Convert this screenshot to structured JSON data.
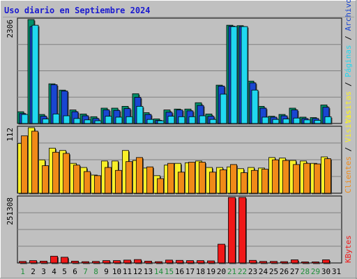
{
  "chart_data": {
    "type": "bar",
    "title": "Uso diario en Septiembre 2024",
    "days": [
      "1",
      "2",
      "3",
      "4",
      "5",
      "6",
      "7",
      "8",
      "9",
      "10",
      "11",
      "12",
      "13",
      "14",
      "15",
      "16",
      "17",
      "18",
      "19",
      "20",
      "21",
      "22",
      "23",
      "24",
      "25",
      "26",
      "27",
      "28",
      "29",
      "30",
      "31"
    ],
    "weekend_days": [
      "1",
      "7",
      "8",
      "14",
      "15",
      "21",
      "22",
      "28",
      "29"
    ],
    "panels": [
      {
        "name": "visitas-paginas-archivos-accesos",
        "ylim": [
          0,
          2306
        ],
        "max_label": "2306",
        "series": [
          {
            "name": "Accesos",
            "color": "#008f6b",
            "values": [
              260,
              2306,
              200,
              880,
              740,
              300,
              210,
              150,
              340,
              340,
              380,
              660,
              240,
              100,
              300,
              320,
              320,
              460,
              210,
              850,
              2180,
              2170,
              940,
              380,
              160,
              200,
              340,
              140,
              130,
              410,
              0
            ]
          },
          {
            "name": "Archivos",
            "color": "#1946d2",
            "values": [
              220,
              2150,
              160,
              860,
              720,
              260,
              170,
              110,
              300,
              290,
              330,
              580,
              200,
              70,
              250,
              300,
              280,
              400,
              160,
              830,
              2160,
              2150,
              900,
              340,
              140,
              170,
              300,
              110,
              110,
              360,
              0
            ]
          },
          {
            "name": "Páginas",
            "color": "#20d8f0",
            "values": [
              200,
              2180,
              100,
              210,
              170,
              110,
              80,
              60,
              160,
              140,
              150,
              380,
              90,
              60,
              160,
              150,
              150,
              170,
              90,
              650,
              2150,
              2150,
              740,
              140,
              90,
              100,
              120,
              80,
              70,
              150,
              0
            ]
          }
        ]
      },
      {
        "name": "visitas-clientes",
        "ylim": [
          0,
          112
        ],
        "max_label": "112",
        "series": [
          {
            "name": "Visitas",
            "color": "#f8f028",
            "values": [
              85,
              112,
              57,
              77,
              73,
              51,
              44,
              31,
              55,
              55,
              73,
              56,
              43,
              30,
              48,
              51,
              52,
              55,
              44,
              44,
              45,
              42,
              44,
              43,
              61,
              60,
              56,
              55,
              51,
              62,
              0
            ]
          },
          {
            "name": "Clientes",
            "color": "#f08a18",
            "values": [
              98,
              106,
              47,
              70,
              68,
              48,
              37,
              30,
              44,
              39,
              54,
              61,
              45,
              25,
              51,
              36,
              53,
              53,
              36,
              40,
              49,
              35,
              39,
              41,
              57,
              56,
              49,
              51,
              50,
              59,
              0
            ]
          }
        ]
      },
      {
        "name": "kbytes",
        "ylim": [
          0,
          251308
        ],
        "max_label": "251308",
        "series": [
          {
            "name": "KBytes",
            "color": "#f01818",
            "values": [
              6000,
              9000,
              7000,
              26000,
              22000,
              7000,
              5000,
              6000,
              9000,
              9000,
              11000,
              13000,
              7000,
              5000,
              11000,
              10000,
              9000,
              9000,
              8000,
              72000,
              251308,
              251308,
              10000,
              6000,
              6000,
              5000,
              12000,
              4000,
              4000,
              12000,
              0
            ]
          }
        ]
      }
    ],
    "legend_side": "right",
    "side_labels": {
      "top": [
        "Visitas",
        "Páginas",
        "Archivos",
        "Accesos"
      ],
      "middle": [
        "Clientes",
        "Visitas"
      ],
      "bottom": [
        "KBytes"
      ]
    },
    "separator": "/"
  }
}
